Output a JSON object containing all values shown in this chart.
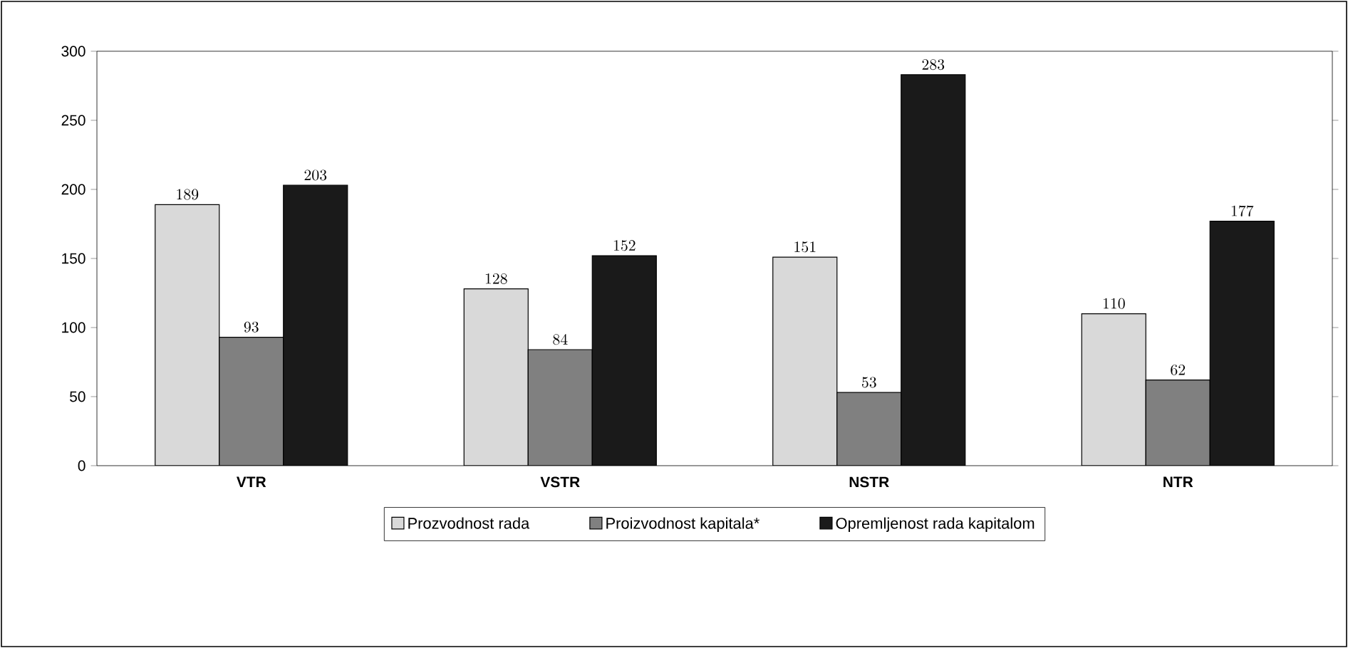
{
  "chart_data": {
    "type": "bar",
    "categories": [
      "VTR",
      "VSTR",
      "NSTR",
      "NTR"
    ],
    "series": [
      {
        "name": "Prozvodnost rada",
        "color": "#d9d9d9",
        "values": [
          189,
          128,
          151,
          110
        ]
      },
      {
        "name": "Proizvodnost kapitala*",
        "color": "#808080",
        "values": [
          93,
          84,
          53,
          62
        ]
      },
      {
        "name": "Opremljenost rada kapitalom",
        "color": "#1a1a1a",
        "values": [
          203,
          152,
          283,
          177
        ]
      }
    ],
    "ylim": [
      0,
      300
    ],
    "yticks": [
      0,
      50,
      100,
      150,
      200,
      250,
      300
    ],
    "data_labels": true,
    "legend": "bottom",
    "grid": false
  }
}
